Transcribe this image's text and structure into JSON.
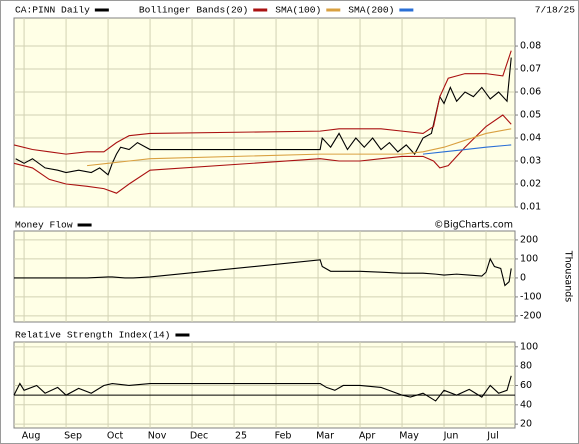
{
  "chart_data": [
    {
      "type": "line",
      "date": "7/18/25",
      "xlim": [
        -0.24,
        11.69
      ],
      "ylim": [
        0.01,
        0.0922
      ],
      "yticks": [
        0.01,
        0.02,
        0.03,
        0.04,
        0.05,
        0.06,
        0.07,
        0.08
      ],
      "grid": true,
      "series": [
        {
          "name": "CA:PINN Daily",
          "color": "#000000",
          "x": [
            -0.2,
            0.0,
            0.2,
            0.5,
            0.8,
            1.0,
            1.3,
            1.6,
            1.8,
            2.0,
            2.1,
            2.2,
            2.3,
            2.5,
            2.7,
            2.9,
            3.0,
            7.05,
            7.1,
            7.3,
            7.5,
            7.7,
            7.9,
            8.1,
            8.3,
            8.5,
            8.7,
            8.9,
            9.1,
            9.3,
            9.5,
            9.7,
            9.8,
            9.9,
            10.0,
            10.15,
            10.3,
            10.5,
            10.7,
            10.9,
            11.1,
            11.3,
            11.5,
            11.6
          ],
          "values": [
            0.031,
            0.029,
            0.031,
            0.027,
            0.026,
            0.025,
            0.026,
            0.025,
            0.027,
            0.024,
            0.029,
            0.033,
            0.036,
            0.035,
            0.038,
            0.036,
            0.035,
            0.035,
            0.04,
            0.036,
            0.042,
            0.035,
            0.04,
            0.036,
            0.04,
            0.035,
            0.038,
            0.034,
            0.037,
            0.033,
            0.04,
            0.042,
            0.05,
            0.058,
            0.055,
            0.062,
            0.056,
            0.06,
            0.058,
            0.062,
            0.057,
            0.06,
            0.056,
            0.075
          ]
        },
        {
          "name": "Bollinger Bands(20)",
          "color": "#aa1111",
          "x": [
            -0.24,
            0.2,
            0.6,
            1.0,
            1.5,
            1.9,
            2.2,
            2.5,
            3.0,
            7.05,
            7.5,
            8.0,
            8.5,
            9.0,
            9.5,
            9.75,
            9.9,
            10.1,
            10.5,
            11.0,
            11.4,
            11.6
          ],
          "values": [
            0.037,
            0.035,
            0.034,
            0.033,
            0.034,
            0.034,
            0.038,
            0.041,
            0.042,
            0.043,
            0.044,
            0.044,
            0.044,
            0.043,
            0.042,
            0.045,
            0.058,
            0.066,
            0.068,
            0.068,
            0.067,
            0.078
          ],
          "lower": [
            0.029,
            0.027,
            0.022,
            0.02,
            0.019,
            0.018,
            0.016,
            0.02,
            0.026,
            0.031,
            0.03,
            0.03,
            0.031,
            0.032,
            0.032,
            0.03,
            0.027,
            0.028,
            0.036,
            0.045,
            0.05,
            0.046
          ]
        },
        {
          "name": "SMA(100)",
          "color": "#d9a040",
          "x": [
            1.5,
            2.0,
            2.5,
            3.0,
            7.05,
            8.0,
            9.0,
            9.5,
            10.0,
            10.5,
            11.0,
            11.6
          ],
          "values": [
            0.028,
            0.029,
            0.03,
            0.031,
            0.033,
            0.033,
            0.033,
            0.034,
            0.036,
            0.039,
            0.042,
            0.044
          ]
        },
        {
          "name": "SMA(200)",
          "color": "#2a6fd6",
          "x": [
            9.5,
            10.0,
            10.5,
            11.0,
            11.6
          ],
          "values": [
            0.033,
            0.034,
            0.035,
            0.036,
            0.037
          ]
        }
      ]
    },
    {
      "type": "line",
      "credit": "©BigCharts.com",
      "ylabel": "Thousands",
      "xlim": [
        -0.24,
        11.69
      ],
      "ylim": [
        -232,
        247
      ],
      "yticks": [
        -200,
        -100,
        0,
        100,
        200
      ],
      "grid": true,
      "series": [
        {
          "name": "Money Flow",
          "color": "#000000",
          "x": [
            -0.24,
            1.5,
            2.0,
            2.1,
            2.4,
            2.6,
            3.0,
            7.05,
            7.1,
            7.3,
            8.0,
            8.5,
            9.0,
            9.5,
            9.8,
            10.0,
            10.3,
            10.6,
            10.9,
            11.0,
            11.1,
            11.2,
            11.35,
            11.45,
            11.55,
            11.6
          ],
          "values": [
            0,
            0,
            5,
            5,
            0,
            0,
            5,
            95,
            60,
            35,
            35,
            30,
            25,
            25,
            20,
            15,
            20,
            15,
            10,
            30,
            100,
            60,
            50,
            -40,
            -20,
            50
          ]
        }
      ]
    },
    {
      "type": "line",
      "xlim": [
        -0.24,
        11.69
      ],
      "ylim": [
        16,
        105
      ],
      "yticks": [
        20,
        40,
        60,
        80,
        100
      ],
      "grid": true,
      "hline": 50,
      "xticks": [
        {
          "value": 0,
          "label": "Aug"
        },
        {
          "value": 1,
          "label": "Sep"
        },
        {
          "value": 2,
          "label": "Oct"
        },
        {
          "value": 3,
          "label": "Nov"
        },
        {
          "value": 4,
          "label": "Dec"
        },
        {
          "value": 5,
          "label": "25"
        },
        {
          "value": 6,
          "label": "Feb"
        },
        {
          "value": 7,
          "label": "Mar"
        },
        {
          "value": 8,
          "label": "Apr"
        },
        {
          "value": 9,
          "label": "May"
        },
        {
          "value": 10,
          "label": "Jun"
        },
        {
          "value": 11,
          "label": "Jul"
        }
      ],
      "series": [
        {
          "name": "Relative Strength Index(14)",
          "color": "#000000",
          "x": [
            -0.24,
            -0.1,
            0.0,
            0.3,
            0.5,
            0.8,
            1.0,
            1.3,
            1.6,
            1.9,
            2.1,
            2.5,
            3.0,
            7.05,
            7.2,
            7.4,
            7.6,
            8.0,
            8.5,
            9.0,
            9.2,
            9.5,
            9.8,
            10.0,
            10.3,
            10.6,
            10.9,
            11.1,
            11.3,
            11.5,
            11.6
          ],
          "values": [
            50,
            62,
            55,
            60,
            52,
            58,
            50,
            57,
            52,
            60,
            62,
            60,
            62,
            62,
            58,
            55,
            60,
            60,
            58,
            50,
            48,
            52,
            44,
            55,
            50,
            56,
            48,
            60,
            52,
            55,
            70
          ]
        }
      ]
    }
  ]
}
